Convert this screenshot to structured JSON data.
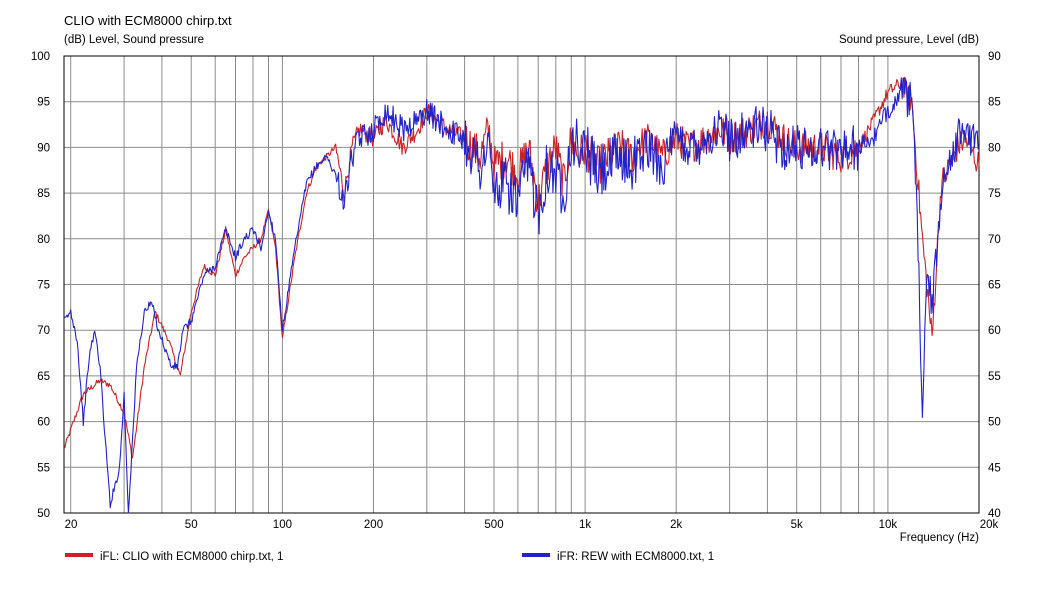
{
  "chart_data": {
    "type": "line",
    "title": "CLIO with ECM8000 chirp.txt",
    "left_axis_label": "(dB)  Level, Sound pressure",
    "right_axis_label": "Sound pressure, Level  (dB)",
    "xlabel": "Frequency  (Hz)",
    "x_scale": "log",
    "xlim": [
      19,
      20000
    ],
    "ylim_left": [
      50,
      100
    ],
    "ylim_right": [
      40,
      90
    ],
    "x_tick_labels": [
      {
        "v": 20,
        "t": "20"
      },
      {
        "v": 50,
        "t": "50"
      },
      {
        "v": 100,
        "t": "100"
      },
      {
        "v": 200,
        "t": "200"
      },
      {
        "v": 500,
        "t": "500"
      },
      {
        "v": 1000,
        "t": "1k"
      },
      {
        "v": 2000,
        "t": "2k"
      },
      {
        "v": 5000,
        "t": "5k"
      },
      {
        "v": 10000,
        "t": "10k"
      },
      {
        "v": 20000,
        "t": "20k"
      }
    ],
    "y_left_ticks": [
      50,
      55,
      60,
      65,
      70,
      75,
      80,
      85,
      90,
      95,
      100
    ],
    "y_right_ticks": [
      40,
      45,
      50,
      55,
      60,
      65,
      70,
      75,
      80,
      85,
      90
    ],
    "grid": true,
    "legend_position": "bottom",
    "series": [
      {
        "name": "iFL: CLIO with ECM8000 chirp.txt, 1",
        "color": "#cc2222",
        "x": [
          19,
          22,
          25,
          27,
          30,
          32,
          35,
          38,
          42,
          46,
          50,
          55,
          60,
          65,
          70,
          75,
          80,
          85,
          90,
          95,
          100,
          110,
          120,
          130,
          140,
          150,
          160,
          170,
          180,
          200,
          220,
          250,
          280,
          300,
          350,
          400,
          450,
          480,
          500,
          550,
          600,
          650,
          700,
          750,
          800,
          850,
          900,
          950,
          1000,
          1100,
          1200,
          1300,
          1400,
          1500,
          1600,
          1800,
          2000,
          2200,
          2500,
          2800,
          3000,
          3500,
          4000,
          4500,
          5000,
          6000,
          7000,
          8000,
          9000,
          10000,
          11000,
          12000,
          13000,
          14000,
          15000,
          16000,
          17000,
          18000,
          20000
        ],
        "y": [
          57,
          63,
          64.5,
          64,
          61,
          56,
          66,
          72,
          69,
          65,
          72,
          77,
          76,
          81,
          76,
          78,
          79,
          80,
          83,
          79,
          69,
          78,
          85,
          88,
          89,
          90,
          85,
          90,
          92,
          91,
          93,
          90,
          92,
          94,
          92,
          91,
          89,
          92,
          88,
          89,
          87,
          90,
          84,
          88,
          90,
          86,
          91,
          89,
          90,
          88,
          89,
          90,
          89,
          90,
          91,
          89,
          91,
          90,
          91,
          92,
          91,
          92,
          93,
          91,
          90,
          90,
          89,
          90,
          93,
          96,
          97,
          95,
          80,
          69,
          86,
          88,
          90,
          91,
          88
        ]
      },
      {
        "name": "iFR: REW with ECM8000.txt, 1",
        "color": "#2222cc",
        "x": [
          19,
          20,
          21,
          22,
          23,
          24,
          25,
          26,
          27,
          28,
          29,
          30,
          31,
          32,
          33,
          35,
          37,
          39,
          41,
          43,
          45,
          47,
          50,
          55,
          60,
          65,
          70,
          75,
          80,
          85,
          90,
          95,
          100,
          110,
          120,
          130,
          140,
          150,
          160,
          170,
          180,
          200,
          220,
          250,
          280,
          300,
          350,
          400,
          450,
          480,
          500,
          550,
          600,
          650,
          700,
          750,
          800,
          850,
          900,
          950,
          1000,
          1100,
          1200,
          1300,
          1400,
          1500,
          1600,
          1800,
          2000,
          2200,
          2500,
          2800,
          3000,
          3500,
          4000,
          4500,
          5000,
          6000,
          7000,
          8000,
          9000,
          10000,
          11000,
          12000,
          12500,
          13000,
          13500,
          14000,
          15000,
          16000,
          17000,
          18000,
          20000
        ],
        "y": [
          71,
          72,
          69,
          60,
          67,
          70,
          66,
          58,
          51,
          53,
          55,
          63,
          50,
          58,
          66,
          72,
          73,
          70,
          68,
          66,
          66,
          70,
          71,
          76,
          77,
          81,
          78,
          80,
          81,
          79,
          83,
          80,
          70,
          79,
          86,
          88,
          89,
          87,
          84,
          89,
          91,
          92,
          94,
          92,
          93,
          94,
          92,
          91,
          88,
          90,
          85,
          86,
          84,
          88,
          83,
          88,
          87,
          85,
          91,
          90,
          90,
          87,
          88,
          89,
          88,
          89,
          90,
          88,
          91,
          90,
          91,
          92,
          91,
          92,
          92,
          90,
          90,
          90,
          90,
          90,
          91,
          94,
          96,
          95,
          82,
          62,
          77,
          72,
          85,
          89,
          91,
          92,
          90
        ]
      }
    ]
  }
}
